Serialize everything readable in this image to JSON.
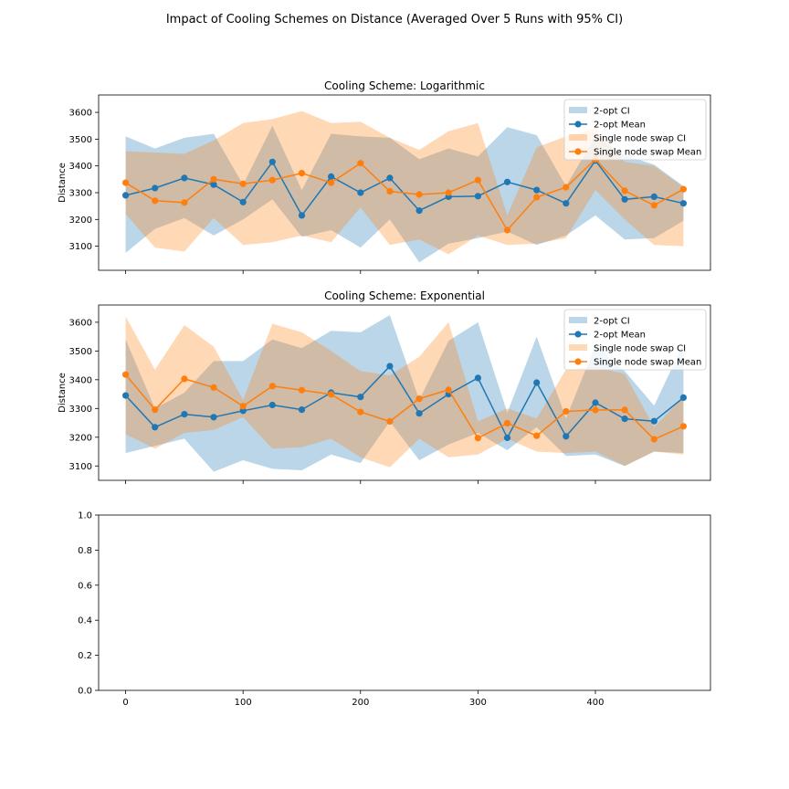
{
  "figure": {
    "suptitle": "Impact of Cooling Schemes on Distance (Averaged Over 5 Runs with 95% CI)"
  },
  "chart_data": [
    {
      "type": "line",
      "title": "Cooling Scheme: Logarithmic",
      "xlabel": "",
      "ylabel": "Distance",
      "xlim": [
        -23,
        498
      ],
      "ylim": [
        3010,
        3665
      ],
      "yticks": [
        3100,
        3200,
        3300,
        3400,
        3500,
        3600
      ],
      "xticks": [
        0,
        100,
        200,
        300,
        400
      ],
      "show_xticklabels": false,
      "legend_position": "upper right",
      "x": [
        0,
        25,
        50,
        75,
        100,
        125,
        150,
        175,
        200,
        225,
        250,
        275,
        300,
        325,
        350,
        375,
        400,
        425,
        450,
        475
      ],
      "series": [
        {
          "name": "2-opt Mean",
          "ci_name": "2-opt CI",
          "color": "#1f77b4",
          "mean": [
            3290,
            3317,
            3355,
            3330,
            3265,
            3415,
            3215,
            3360,
            3300,
            3355,
            3233,
            3285,
            3287,
            3340,
            3310,
            3260,
            3420,
            3275,
            3285,
            3260
          ],
          "ci_low": [
            3075,
            3165,
            3205,
            3140,
            3200,
            3275,
            3135,
            3160,
            3095,
            3200,
            3040,
            3110,
            3130,
            3155,
            3105,
            3140,
            3215,
            3125,
            3130,
            3195
          ],
          "ci_high": [
            3510,
            3465,
            3505,
            3520,
            3330,
            3550,
            3310,
            3520,
            3510,
            3505,
            3425,
            3465,
            3435,
            3545,
            3515,
            3325,
            3510,
            3440,
            3405,
            3325
          ]
        },
        {
          "name": "Single node swap Mean",
          "ci_name": "Single node swap CI",
          "color": "#ff7f0e",
          "mean": [
            3337,
            3270,
            3263,
            3350,
            3333,
            3347,
            3373,
            3337,
            3410,
            3305,
            3293,
            3300,
            3347,
            3160,
            3283,
            3320,
            3425,
            3307,
            3253,
            3313
          ],
          "ci_low": [
            3220,
            3095,
            3080,
            3205,
            3105,
            3115,
            3140,
            3115,
            3245,
            3105,
            3125,
            3070,
            3140,
            3105,
            3110,
            3130,
            3310,
            3200,
            3105,
            3100
          ],
          "ci_high": [
            3455,
            3450,
            3445,
            3495,
            3560,
            3575,
            3605,
            3560,
            3565,
            3505,
            3460,
            3530,
            3560,
            3215,
            3470,
            3510,
            3540,
            3415,
            3400,
            3320
          ]
        }
      ]
    },
    {
      "type": "line",
      "title": "Cooling Scheme: Exponential",
      "xlabel": "",
      "ylabel": "Distance",
      "xlim": [
        -23,
        498
      ],
      "ylim": [
        3050,
        3660
      ],
      "yticks": [
        3100,
        3200,
        3300,
        3400,
        3500,
        3600
      ],
      "xticks": [
        0,
        100,
        200,
        300,
        400
      ],
      "show_xticklabels": false,
      "legend_position": "upper right",
      "x": [
        0,
        25,
        50,
        75,
        100,
        125,
        150,
        175,
        200,
        225,
        250,
        275,
        300,
        325,
        350,
        375,
        400,
        425,
        450,
        475
      ],
      "series": [
        {
          "name": "2-opt Mean",
          "ci_name": "2-opt CI",
          "color": "#1f77b4",
          "mean": [
            3345,
            3235,
            3280,
            3270,
            3292,
            3312,
            3296,
            3355,
            3340,
            3447,
            3283,
            3350,
            3406,
            3198,
            3390,
            3203,
            3320,
            3264,
            3256,
            3338
          ],
          "ci_low": [
            3145,
            3170,
            3195,
            3080,
            3120,
            3090,
            3085,
            3140,
            3110,
            3255,
            3120,
            3175,
            3215,
            3155,
            3235,
            3135,
            3140,
            3100,
            3150,
            3145
          ],
          "ci_high": [
            3540,
            3300,
            3355,
            3465,
            3465,
            3540,
            3510,
            3570,
            3565,
            3625,
            3330,
            3535,
            3600,
            3285,
            3550,
            3265,
            3520,
            3430,
            3310,
            3525
          ]
        },
        {
          "name": "Single node swap Mean",
          "ci_name": "Single node swap CI",
          "color": "#ff7f0e",
          "mean": [
            3418,
            3296,
            3403,
            3373,
            3308,
            3378,
            3364,
            3349,
            3288,
            3255,
            3334,
            3365,
            3197,
            3249,
            3205,
            3290,
            3295,
            3295,
            3193,
            3238
          ],
          "ci_low": [
            3210,
            3160,
            3215,
            3225,
            3270,
            3160,
            3165,
            3195,
            3130,
            3095,
            3195,
            3130,
            3140,
            3195,
            3150,
            3145,
            3150,
            3100,
            3150,
            3140
          ],
          "ci_high": [
            3620,
            3435,
            3590,
            3515,
            3330,
            3595,
            3565,
            3500,
            3430,
            3415,
            3480,
            3600,
            3255,
            3300,
            3265,
            3435,
            3445,
            3420,
            3235,
            3340
          ]
        }
      ]
    },
    {
      "type": "line",
      "title": "",
      "xlabel": "",
      "ylabel": "",
      "xlim": [
        -23,
        498
      ],
      "ylim": [
        0.0,
        1.0
      ],
      "yticks": [
        0.0,
        0.2,
        0.4,
        0.6,
        0.8,
        1.0
      ],
      "ytick_labels": [
        "0.0",
        "0.2",
        "0.4",
        "0.6",
        "0.8",
        "1.0"
      ],
      "xticks": [
        0,
        100,
        200,
        300,
        400
      ],
      "show_xticklabels": true,
      "series": []
    }
  ]
}
